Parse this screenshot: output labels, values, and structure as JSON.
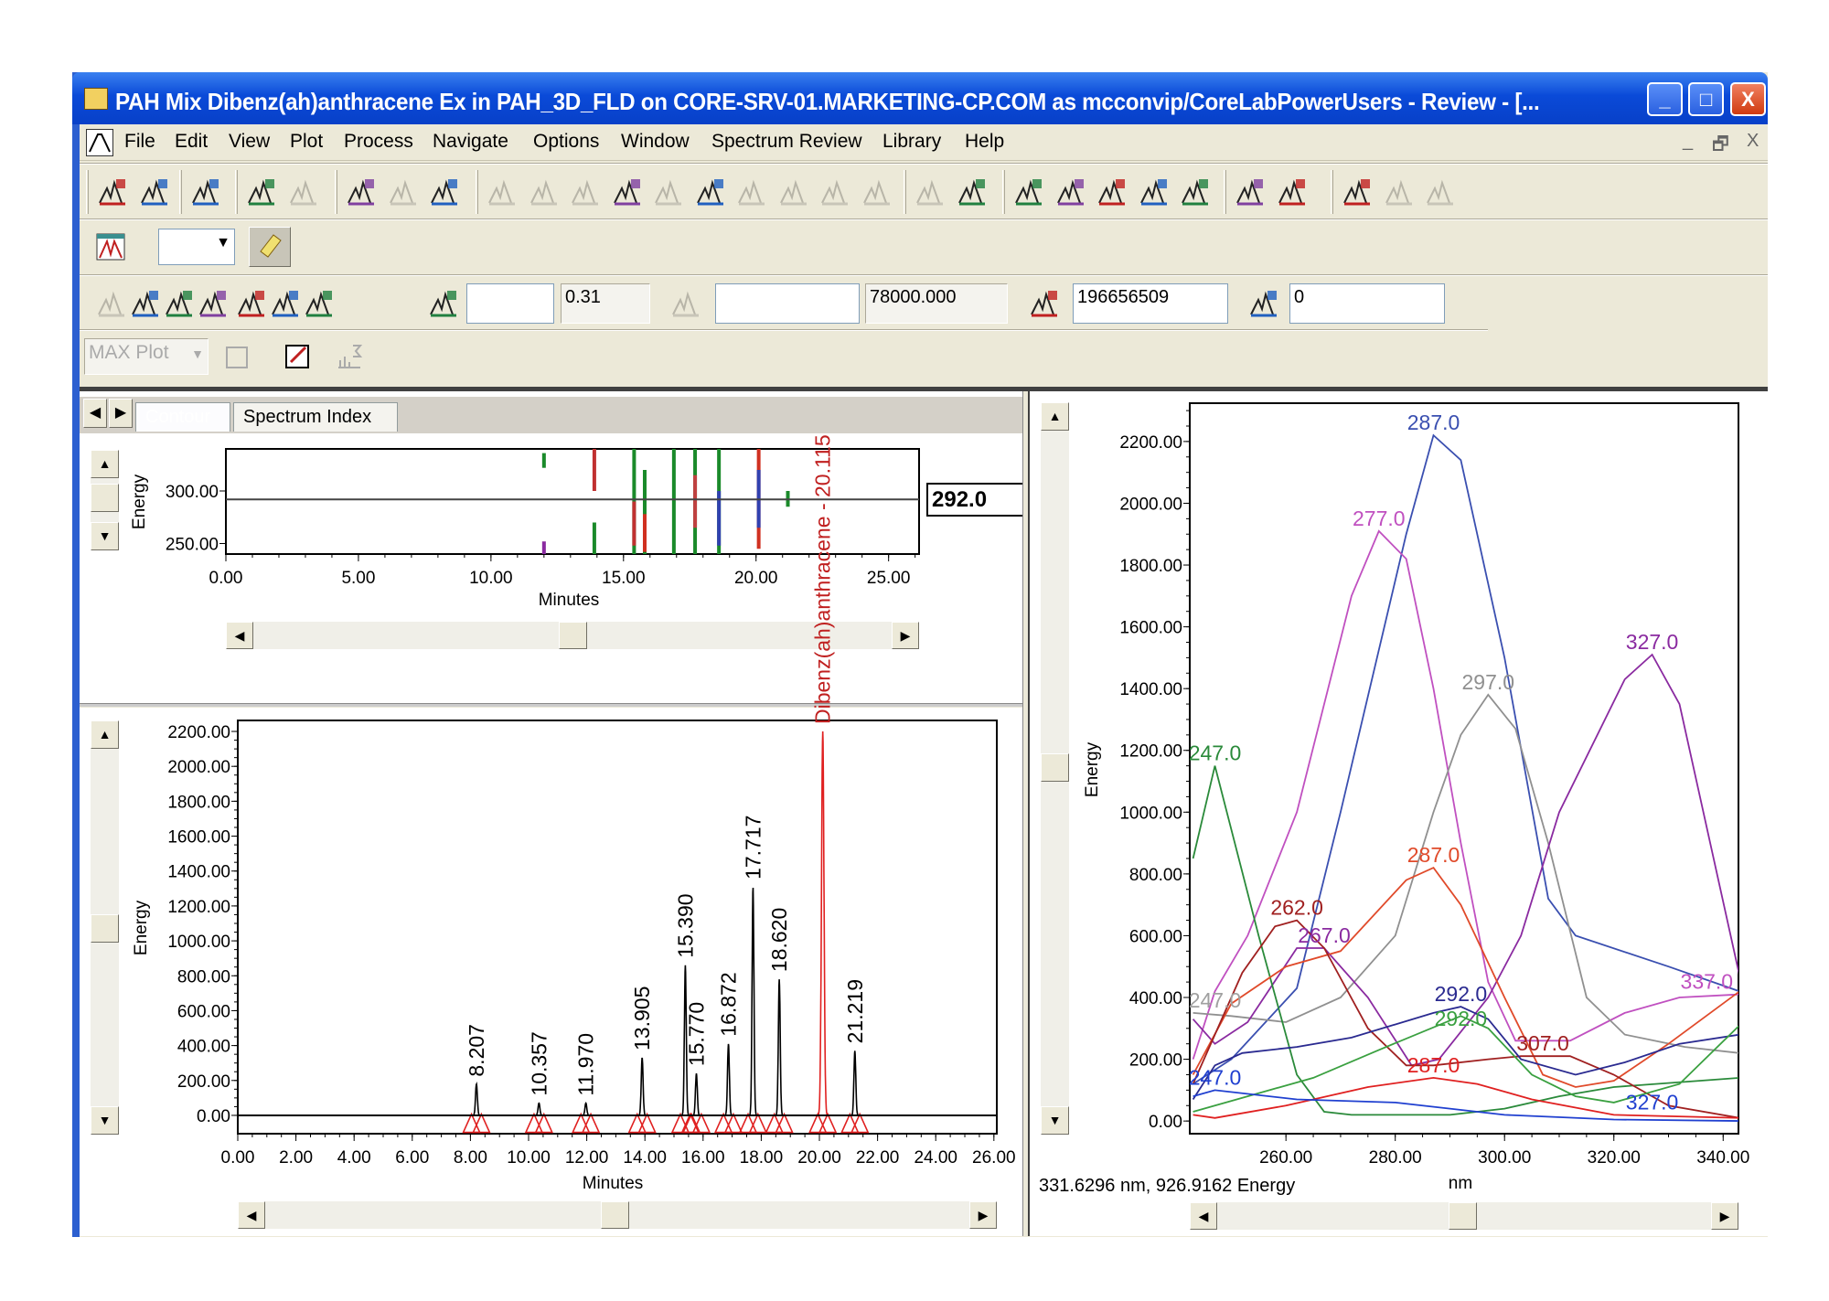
{
  "window": {
    "title": "PAH Mix Dibenz(ah)anthracene Ex in PAH_3D_FLD on CORE-SRV-01.MARKETING-CP.COM as mcconvip/CoreLabPowerUsers - Review - [...",
    "minimize": "_",
    "maximize": "□",
    "close": "X"
  },
  "menu": {
    "items": [
      "File",
      "Edit",
      "View",
      "Plot",
      "Process",
      "Navigate",
      "Options",
      "Window",
      "Spectrum Review",
      "Library",
      "Help"
    ],
    "mdi": [
      "_",
      "🗗",
      "X"
    ]
  },
  "toolbar1": {
    "groups": [
      [
        {
          "icon": "open-project-icon",
          "enabled": true
        },
        {
          "icon": "save-icon",
          "enabled": true
        }
      ],
      [
        {
          "icon": "tools-icon",
          "enabled": true
        }
      ],
      [
        {
          "icon": "integrate-icon",
          "enabled": true
        },
        {
          "icon": "integrate-disabled-icon",
          "enabled": false
        }
      ],
      [
        {
          "icon": "peak-chart-icon",
          "enabled": true
        },
        {
          "icon": "pen-icon",
          "enabled": false
        },
        {
          "icon": "calibrate-icon",
          "enabled": true
        }
      ],
      [
        {
          "icon": "undo-peak-icon",
          "enabled": false
        },
        {
          "icon": "redo-peak-icon",
          "enabled": false
        },
        {
          "icon": "zoom-peak-icon",
          "enabled": false
        },
        {
          "icon": "clear-peaks-icon",
          "enabled": true
        },
        {
          "icon": "rotate-left-icon",
          "enabled": false
        },
        {
          "icon": "rotate-right-icon",
          "enabled": true
        },
        {
          "icon": "copy-table-icon",
          "enabled": false
        },
        {
          "icon": "paste-table-icon",
          "enabled": false
        },
        {
          "icon": "undo-icon",
          "enabled": false
        },
        {
          "icon": "redo-icon",
          "enabled": false
        }
      ],
      [
        {
          "icon": "export-icon",
          "enabled": false
        },
        {
          "icon": "peak-table-icon",
          "enabled": true
        }
      ],
      [
        {
          "icon": "chromatogram-view-icon",
          "enabled": true
        },
        {
          "icon": "copy-icon",
          "enabled": true
        },
        {
          "icon": "list-icon",
          "enabled": true
        },
        {
          "icon": "edit-plot-icon",
          "enabled": true
        },
        {
          "icon": "report-icon",
          "enabled": true
        }
      ],
      [
        {
          "icon": "print-icon",
          "enabled": true
        },
        {
          "icon": "help-pointer-icon",
          "enabled": true
        }
      ],
      [
        {
          "icon": "eraser-red-icon",
          "enabled": true
        },
        {
          "icon": "eraser-disabled-icon",
          "enabled": false
        },
        {
          "icon": "eraser-disabled-2-icon",
          "enabled": false
        }
      ]
    ]
  },
  "toolbar2": {
    "combo_value": "",
    "combo_arrow": "▼"
  },
  "toolbar3": {
    "icons_left": [
      "spectra-overlay-icon",
      "next-spectrum-icon",
      "prev-spectrum-icon",
      "auto-spectrum-icon",
      "multi-peaks-icon",
      "single-peak-icon",
      "baseline-peaks-icon"
    ],
    "fields": [
      {
        "icon": "threshold-icon",
        "value_a": "",
        "value_b": "0.31"
      },
      {
        "icon": "peak-width-icon",
        "value_a": "",
        "value_b": "78000.000"
      },
      {
        "icon": "area-icon",
        "value_a": "196656509"
      },
      {
        "icon": "height-icon",
        "value_a": "0"
      }
    ]
  },
  "toolbar4": {
    "max_plot": "MAX Plot",
    "arrow": "▼"
  },
  "contour": {
    "tabs": [
      {
        "label": "Contour",
        "active": true
      },
      {
        "label": "Spectrum Index",
        "active": false
      }
    ],
    "wavelength_box": "292.0",
    "chart_data": {
      "type": "heatmap",
      "xlabel": "Minutes",
      "ylabel": "Energy",
      "xlim": [
        0,
        26.15
      ],
      "ylim": [
        240,
        340
      ],
      "xticks": [
        "0.00",
        "5.00",
        "10.00",
        "15.00",
        "20.00",
        "25.00"
      ],
      "xtick_values": [
        0,
        5,
        10,
        15,
        20,
        25
      ],
      "yticks": [
        "250.00",
        "300.00"
      ],
      "ytick_values": [
        250,
        300
      ],
      "cursor_wavelength": 292,
      "streaks": [
        {
          "t": 12.0,
          "from": 322,
          "to": 336,
          "color": "#1a8a2a"
        },
        {
          "t": 12.0,
          "from": 240,
          "to": 252,
          "color": "#8a2aa0"
        },
        {
          "t": 13.9,
          "from": 300,
          "to": 340,
          "color": "#c03030"
        },
        {
          "t": 13.9,
          "from": 240,
          "to": 270,
          "color": "#1a8a2a"
        },
        {
          "t": 15.4,
          "from": 240,
          "to": 340,
          "color": "#1a8a2a"
        },
        {
          "t": 15.4,
          "from": 248,
          "to": 290,
          "color": "#c03030"
        },
        {
          "t": 15.8,
          "from": 240,
          "to": 320,
          "color": "#1a8a2a"
        },
        {
          "t": 15.8,
          "from": 242,
          "to": 278,
          "color": "#d03020"
        },
        {
          "t": 16.9,
          "from": 240,
          "to": 340,
          "color": "#1a8a2a"
        },
        {
          "t": 17.7,
          "from": 240,
          "to": 340,
          "color": "#1a8a2a"
        },
        {
          "t": 17.7,
          "from": 265,
          "to": 315,
          "color": "#c04040"
        },
        {
          "t": 18.6,
          "from": 240,
          "to": 340,
          "color": "#1a8a2a"
        },
        {
          "t": 18.6,
          "from": 248,
          "to": 300,
          "color": "#3040b0"
        },
        {
          "t": 20.1,
          "from": 245,
          "to": 340,
          "color": "#d03020"
        },
        {
          "t": 20.1,
          "from": 265,
          "to": 320,
          "color": "#3040b0"
        },
        {
          "t": 21.2,
          "from": 285,
          "to": 300,
          "color": "#1a8a2a"
        }
      ]
    }
  },
  "chromatogram": {
    "chart_data": {
      "type": "line",
      "xlabel": "Minutes",
      "ylabel": "Energy",
      "xlim": [
        0,
        26.1
      ],
      "ylim": [
        -105,
        2263
      ],
      "xticks": [
        "0.00",
        "2.00",
        "4.00",
        "6.00",
        "8.00",
        "10.00",
        "12.00",
        "14.00",
        "16.00",
        "18.00",
        "20.00",
        "22.00",
        "24.00",
        "26.00"
      ],
      "xtick_values": [
        0,
        2,
        4,
        6,
        8,
        10,
        12,
        14,
        16,
        18,
        20,
        22,
        24,
        26
      ],
      "yticks": [
        "0.00",
        "200.00",
        "400.00",
        "600.00",
        "800.00",
        "1000.00",
        "1200.00",
        "1400.00",
        "1600.00",
        "1800.00",
        "2000.00",
        "2200.00"
      ],
      "ytick_values": [
        0,
        200,
        400,
        600,
        800,
        1000,
        1200,
        1400,
        1600,
        1800,
        2000,
        2200
      ],
      "peaks": [
        {
          "rt": 8.207,
          "height": 180,
          "label": "8.207",
          "color": "#000000"
        },
        {
          "rt": 10.357,
          "height": 70,
          "label": "10.357",
          "color": "#000000"
        },
        {
          "rt": 11.97,
          "height": 70,
          "label": "11.970",
          "color": "#000000"
        },
        {
          "rt": 13.905,
          "height": 330,
          "label": "13.905",
          "color": "#000000"
        },
        {
          "rt": 15.39,
          "height": 860,
          "label": "15.390",
          "color": "#000000"
        },
        {
          "rt": 15.77,
          "height": 240,
          "label": "15.770",
          "color": "#000000"
        },
        {
          "rt": 16.872,
          "height": 410,
          "label": "16.872",
          "color": "#000000"
        },
        {
          "rt": 17.717,
          "height": 1310,
          "label": "17.717",
          "color": "#000000"
        },
        {
          "rt": 18.62,
          "height": 780,
          "label": "18.620",
          "color": "#000000"
        },
        {
          "rt": 20.115,
          "height": 2200,
          "label": "Dibenz(ah)anthracene - 20.115",
          "color": "#e02020"
        },
        {
          "rt": 21.219,
          "height": 370,
          "label": "21.219",
          "color": "#000000"
        }
      ],
      "marker_color": "#e02020"
    }
  },
  "spectrum": {
    "status": "331.6296 nm, 926.9162 Energy",
    "chart_data": {
      "type": "line",
      "xlabel": "nm",
      "ylabel": "Energy",
      "xlim": [
        242.4,
        342.8
      ],
      "ylim": [
        -41,
        2324
      ],
      "xticks": [
        "260.00",
        "280.00",
        "300.00",
        "320.00",
        "340.00"
      ],
      "xtick_values": [
        260,
        280,
        300,
        320,
        340
      ],
      "yticks": [
        "0.00",
        "200.00",
        "400.00",
        "600.00",
        "800.00",
        "1000.00",
        "1200.00",
        "1400.00",
        "1600.00",
        "1800.00",
        "2000.00",
        "2200.00"
      ],
      "ytick_values": [
        0,
        200,
        400,
        600,
        800,
        1000,
        1200,
        1400,
        1600,
        1800,
        2000,
        2200
      ],
      "series": [
        {
          "color": "#3a4fb0",
          "x": [
            243,
            250,
            262,
            270,
            282,
            287,
            292,
            300,
            308,
            313,
            330,
            343
          ],
          "y": [
            120,
            200,
            430,
            1000,
            1900,
            2220,
            2140,
            1500,
            720,
            600,
            500,
            420
          ]
        },
        {
          "color": "#c050c0",
          "x": [
            243,
            247,
            253,
            262,
            272,
            277,
            282,
            287,
            292,
            297,
            302,
            312,
            322,
            332,
            343
          ],
          "y": [
            200,
            420,
            600,
            1000,
            1700,
            1910,
            1820,
            1400,
            900,
            450,
            260,
            260,
            350,
            400,
            410
          ]
        },
        {
          "color": "#909090",
          "x": [
            243,
            250,
            260,
            270,
            280,
            287,
            292,
            297,
            302,
            308,
            315,
            322,
            333,
            343
          ],
          "y": [
            350,
            340,
            320,
            400,
            600,
            1000,
            1250,
            1380,
            1270,
            900,
            400,
            280,
            240,
            220
          ]
        },
        {
          "color": "#8a2aa0",
          "x": [
            243,
            247,
            253,
            262,
            267,
            275,
            283,
            288,
            297,
            303,
            310,
            322,
            327,
            332,
            343
          ],
          "y": [
            330,
            250,
            320,
            560,
            560,
            400,
            180,
            200,
            400,
            600,
            1000,
            1430,
            1510,
            1350,
            470
          ]
        },
        {
          "color": "#2a8a3a",
          "x": [
            243,
            247,
            255,
            262,
            267,
            272,
            290,
            300,
            310,
            320,
            343
          ],
          "y": [
            850,
            1150,
            600,
            150,
            30,
            20,
            20,
            40,
            80,
            110,
            140
          ]
        },
        {
          "color": "#e04a2a",
          "x": [
            243,
            250,
            260,
            270,
            282,
            287,
            292,
            300,
            307,
            313,
            320,
            330,
            343
          ],
          "y": [
            150,
            380,
            500,
            550,
            780,
            820,
            700,
            400,
            150,
            110,
            130,
            250,
            420
          ]
        },
        {
          "color": "#a02020",
          "x": [
            243,
            247,
            252,
            258,
            262,
            267,
            275,
            282,
            287,
            297,
            303,
            312,
            320,
            330,
            343
          ],
          "y": [
            120,
            280,
            480,
            630,
            650,
            560,
            300,
            180,
            180,
            200,
            210,
            210,
            150,
            50,
            10
          ]
        },
        {
          "color": "#2a2a90",
          "x": [
            243,
            247,
            252,
            262,
            272,
            287,
            292,
            297,
            303,
            313,
            322,
            332,
            343
          ],
          "y": [
            70,
            180,
            220,
            240,
            270,
            350,
            370,
            330,
            200,
            150,
            190,
            250,
            280
          ]
        },
        {
          "color": "#3aa040",
          "x": [
            243,
            253,
            265,
            277,
            292,
            297,
            305,
            313,
            320,
            332,
            343
          ],
          "y": [
            30,
            80,
            140,
            230,
            340,
            300,
            150,
            80,
            60,
            120,
            310
          ]
        },
        {
          "color": "#e02020",
          "x": [
            243,
            247,
            260,
            275,
            287,
            295,
            305,
            320,
            343
          ],
          "y": [
            20,
            10,
            50,
            110,
            140,
            120,
            70,
            20,
            10
          ]
        },
        {
          "color": "#2040d0",
          "x": [
            243,
            247,
            262,
            280,
            290,
            300,
            320,
            343
          ],
          "y": [
            80,
            100,
            70,
            60,
            40,
            20,
            5,
            0
          ]
        }
      ],
      "annotations": [
        {
          "text": "287.0",
          "x": 287,
          "y": 2220,
          "color": "#3a4fb0"
        },
        {
          "text": "277.0",
          "x": 277,
          "y": 1910,
          "color": "#c050c0"
        },
        {
          "text": "327.0",
          "x": 327,
          "y": 1510,
          "color": "#8a2aa0"
        },
        {
          "text": "297.0",
          "x": 297,
          "y": 1380,
          "color": "#909090"
        },
        {
          "text": "247.0",
          "x": 247,
          "y": 1150,
          "color": "#2a8a3a"
        },
        {
          "text": "287.0",
          "x": 287,
          "y": 820,
          "color": "#e04a2a"
        },
        {
          "text": "262.0",
          "x": 262,
          "y": 650,
          "color": "#a02020"
        },
        {
          "text": "267.0",
          "x": 267,
          "y": 560,
          "color": "#8a2aa0"
        },
        {
          "text": "247.0",
          "x": 247,
          "y": 350,
          "color": "#a0a0a0"
        },
        {
          "text": "292.0",
          "x": 292,
          "y": 370,
          "color": "#2a2a90"
        },
        {
          "text": "292.0",
          "x": 292,
          "y": 290,
          "color": "#3aa040"
        },
        {
          "text": "307.0",
          "x": 307,
          "y": 210,
          "color": "#a02020"
        },
        {
          "text": "287.0",
          "x": 287,
          "y": 140,
          "color": "#e02020"
        },
        {
          "text": "247.0",
          "x": 247,
          "y": 100,
          "color": "#2040d0"
        },
        {
          "text": "337.0",
          "x": 337,
          "y": 410,
          "color": "#c050c0"
        },
        {
          "text": "327.0",
          "x": 327,
          "y": 20,
          "color": "#2040d0"
        }
      ]
    }
  },
  "scroll": {
    "left": "◀",
    "right": "▶",
    "up": "▲",
    "down": "▼"
  }
}
